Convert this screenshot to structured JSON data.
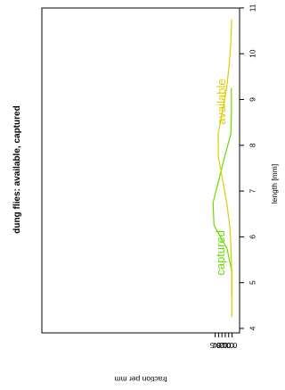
{
  "chart_data": {
    "type": "line",
    "title": "dung flies: available, captured",
    "xlabel": "length [mm]",
    "ylabel": "fraction per mm",
    "xlim": [
      4,
      11
    ],
    "ylim": [
      0,
      0.5
    ],
    "x_ticks": [
      4,
      5,
      6,
      7,
      8,
      9,
      10,
      11
    ],
    "y_ticks": [
      0.0,
      0.1,
      0.2,
      0.3,
      0.4,
      0.5
    ],
    "y_tick_labels": [
      "0.0",
      "0.1",
      "0.2",
      "0.3",
      "0.4",
      "0.5"
    ],
    "orientation": "rotated-90",
    "grid": false,
    "series": [
      {
        "name": "captured",
        "color": "#66dd00",
        "x": [
          4.75,
          5.25,
          5.75,
          6.25,
          6.75,
          7.25,
          7.75,
          8.25,
          8.75,
          9.25
        ],
        "y": [
          0.01,
          0.005,
          0.15,
          0.535,
          0.565,
          0.39,
          0.22,
          0.035,
          0.015,
          0.02
        ]
      },
      {
        "name": "available",
        "color": "#ddcc00",
        "x": [
          4.25,
          4.75,
          5.25,
          5.75,
          6.25,
          6.75,
          7.25,
          7.75,
          8.25,
          8.75,
          9.25,
          9.75,
          10.25,
          10.75
        ],
        "y": [
          0.005,
          0.005,
          0.01,
          0.03,
          0.07,
          0.16,
          0.28,
          0.405,
          0.41,
          0.28,
          0.16,
          0.085,
          0.035,
          0.01
        ]
      }
    ]
  }
}
